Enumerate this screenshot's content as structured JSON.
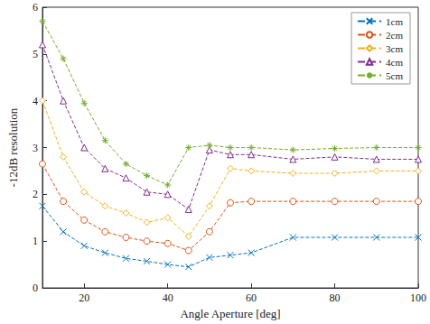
{
  "chart_data": {
    "type": "line",
    "x_label": "Angle Aperture [deg]",
    "y_label": "-12dB resolution",
    "x": [
      10,
      15,
      20,
      25,
      30,
      35,
      40,
      45,
      50,
      55,
      60,
      70,
      80,
      90,
      100
    ],
    "series": [
      {
        "name": "1cm",
        "color": "#0072bd",
        "marker": "x",
        "line_style": "dashed",
        "values": [
          1.75,
          1.2,
          0.9,
          0.75,
          0.63,
          0.57,
          0.5,
          0.45,
          0.65,
          0.7,
          0.75,
          1.08,
          1.08,
          1.08,
          1.08
        ]
      },
      {
        "name": "2cm",
        "color": "#d95319",
        "marker": "circle",
        "line_style": "dashed",
        "values": [
          2.65,
          1.85,
          1.45,
          1.2,
          1.08,
          1.0,
          0.95,
          0.8,
          1.2,
          1.82,
          1.85,
          1.85,
          1.85,
          1.85,
          1.85
        ]
      },
      {
        "name": "3cm",
        "color": "#edb120",
        "marker": "diamond",
        "line_style": "dashed",
        "values": [
          4.0,
          2.8,
          2.05,
          1.75,
          1.6,
          1.4,
          1.5,
          1.1,
          1.75,
          2.55,
          2.5,
          2.45,
          2.45,
          2.5,
          2.5
        ]
      },
      {
        "name": "4cm",
        "color": "#7e2f8e",
        "marker": "triangle",
        "line_style": "dashed",
        "values": [
          5.2,
          4.0,
          3.0,
          2.55,
          2.35,
          2.05,
          2.0,
          1.68,
          2.95,
          2.85,
          2.85,
          2.75,
          2.8,
          2.75,
          2.75
        ]
      },
      {
        "name": "5cm",
        "color": "#77ac30",
        "marker": "star",
        "line_style": "dashed",
        "values": [
          5.7,
          4.9,
          3.95,
          3.15,
          2.65,
          2.4,
          2.2,
          3.0,
          3.05,
          3.0,
          3.0,
          2.95,
          2.98,
          3.0,
          3.0
        ]
      }
    ],
    "xlim": [
      10,
      100
    ],
    "xticks": [
      20,
      40,
      60,
      80,
      100
    ],
    "ylim": [
      0,
      6
    ],
    "yticks": [
      0,
      1,
      2,
      3,
      4,
      5,
      6
    ],
    "grid": false,
    "legend": "upper right"
  }
}
